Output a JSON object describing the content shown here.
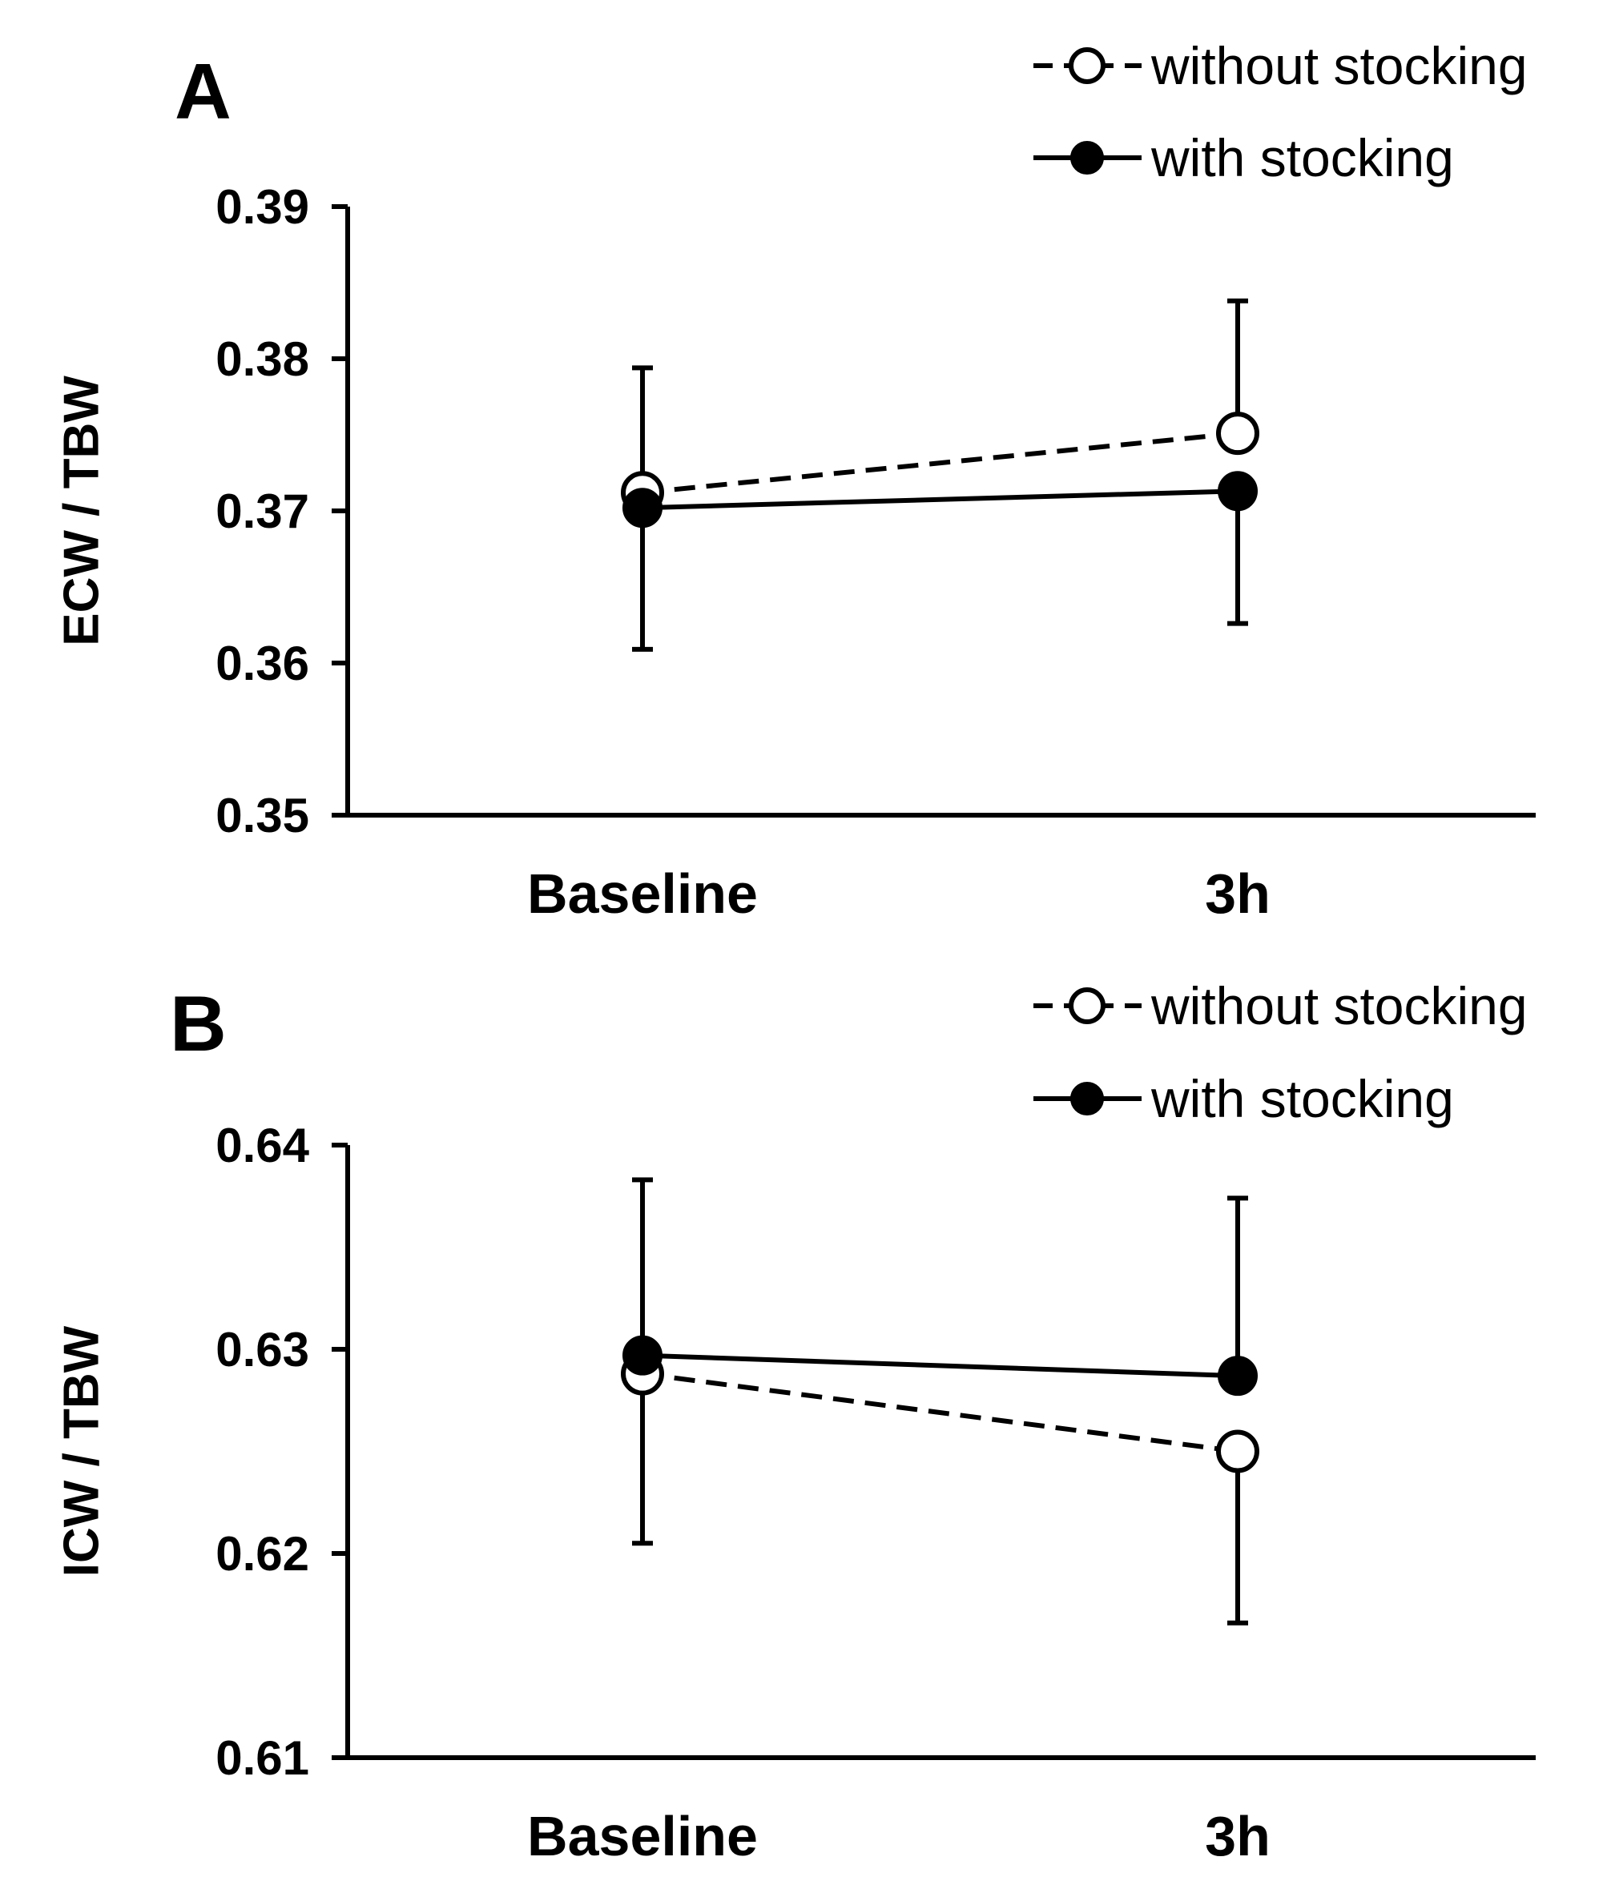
{
  "chart_data": [
    {
      "panel": "A",
      "type": "line",
      "title": "",
      "xlabel": "",
      "ylabel": "ECW / TBW",
      "categories": [
        "Baseline",
        "3h"
      ],
      "ylim": [
        0.35,
        0.39
      ],
      "yticks": [
        "0.35",
        "0.36",
        "0.37",
        "0.38",
        "0.39"
      ],
      "legend_position": "top-right",
      "series": [
        {
          "name": "without stocking",
          "style": "dashed",
          "marker": "open-circle",
          "values": [
            0.3712,
            0.3751
          ],
          "error_bars": [
            [
              null,
              0.3794
            ],
            [
              null,
              0.3838
            ]
          ]
        },
        {
          "name": "with stocking",
          "style": "solid",
          "marker": "filled-circle",
          "values": [
            0.3702,
            0.3713
          ],
          "error_bars": [
            [
              0.3609,
              null
            ],
            [
              0.3626,
              null
            ]
          ]
        }
      ]
    },
    {
      "panel": "B",
      "type": "line",
      "title": "",
      "xlabel": "",
      "ylabel": "ICW / TBW",
      "categories": [
        "Baseline",
        "3h"
      ],
      "ylim": [
        0.61,
        0.64
      ],
      "yticks": [
        "0.61",
        "0.62",
        "0.63",
        "0.64"
      ],
      "legend_position": "top-right",
      "series": [
        {
          "name": "without stocking",
          "style": "dashed",
          "marker": "open-circle",
          "values": [
            0.6288,
            0.625
          ],
          "error_bars": [
            [
              0.6205,
              null
            ],
            [
              0.6166,
              null
            ]
          ]
        },
        {
          "name": "with stocking",
          "style": "solid",
          "marker": "filled-circle",
          "values": [
            0.6297,
            0.6287
          ],
          "error_bars": [
            [
              null,
              0.6383
            ],
            [
              null,
              0.6374
            ]
          ]
        }
      ]
    }
  ]
}
